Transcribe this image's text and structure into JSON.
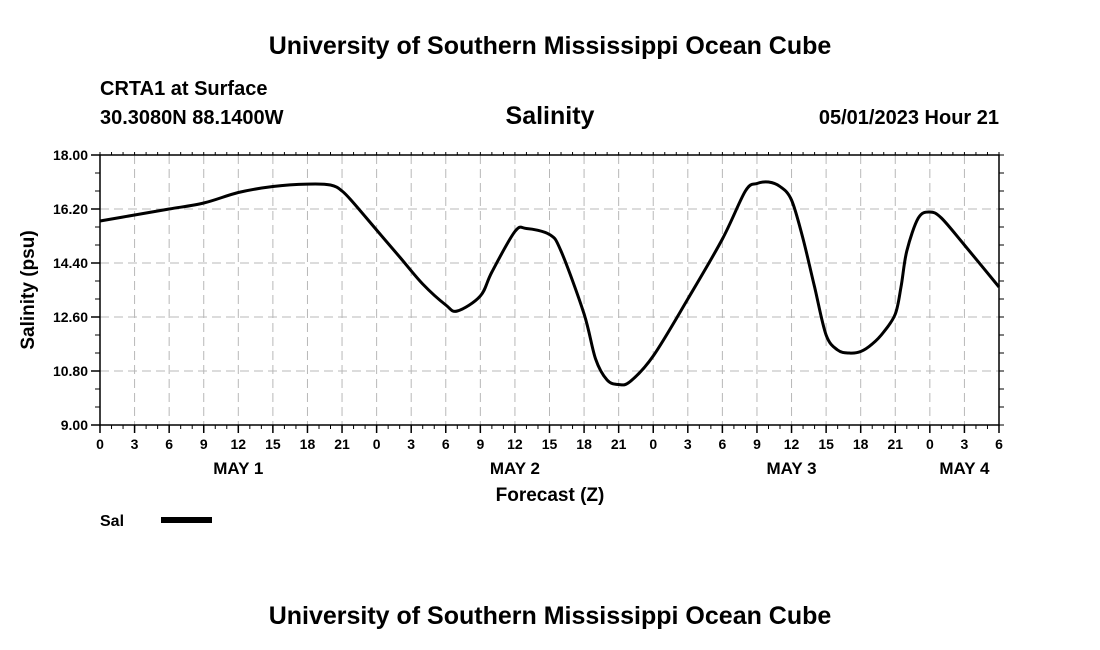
{
  "title_top": "University of Southern Mississippi Ocean Cube",
  "title_bottom": "University of Southern Mississippi Ocean Cube",
  "station": "CRTA1 at Surface",
  "coords": "30.3080N  88.1400W",
  "datetime": "05/01/2023 Hour 21",
  "chart_data": {
    "type": "line",
    "title": "Salinity",
    "xlabel": "Forecast (Z)",
    "ylabel": "Salinity (psu)",
    "xlim": [
      0,
      78
    ],
    "ylim": [
      9.0,
      18.0
    ],
    "y_ticks": [
      "18.00",
      "16.20",
      "14.40",
      "12.60",
      "10.80",
      "9.00"
    ],
    "y_tick_values": [
      18.0,
      16.2,
      14.4,
      12.6,
      10.8,
      9.0
    ],
    "x_ticks": [
      {
        "h": 0,
        "label": "0"
      },
      {
        "h": 3,
        "label": "3"
      },
      {
        "h": 6,
        "label": "6"
      },
      {
        "h": 9,
        "label": "9"
      },
      {
        "h": 12,
        "label": "12"
      },
      {
        "h": 15,
        "label": "15"
      },
      {
        "h": 18,
        "label": "18"
      },
      {
        "h": 21,
        "label": "21"
      },
      {
        "h": 24,
        "label": "0"
      },
      {
        "h": 27,
        "label": "3"
      },
      {
        "h": 30,
        "label": "6"
      },
      {
        "h": 33,
        "label": "9"
      },
      {
        "h": 36,
        "label": "12"
      },
      {
        "h": 39,
        "label": "15"
      },
      {
        "h": 42,
        "label": "18"
      },
      {
        "h": 45,
        "label": "21"
      },
      {
        "h": 48,
        "label": "0"
      },
      {
        "h": 51,
        "label": "3"
      },
      {
        "h": 54,
        "label": "6"
      },
      {
        "h": 57,
        "label": "9"
      },
      {
        "h": 60,
        "label": "12"
      },
      {
        "h": 63,
        "label": "15"
      },
      {
        "h": 66,
        "label": "18"
      },
      {
        "h": 69,
        "label": "21"
      },
      {
        "h": 72,
        "label": "0"
      },
      {
        "h": 75,
        "label": "3"
      },
      {
        "h": 78,
        "label": "6"
      }
    ],
    "day_labels": [
      {
        "h": 12,
        "label": "MAY 1"
      },
      {
        "h": 36,
        "label": "MAY 2"
      },
      {
        "h": 60,
        "label": "MAY 3"
      },
      {
        "h": 75,
        "label": "MAY 4"
      }
    ],
    "series": [
      {
        "name": "Sal",
        "x": [
          0,
          3,
          6,
          9,
          12,
          15,
          18,
          20,
          21,
          22,
          24,
          26,
          28,
          30,
          31,
          33,
          34,
          36,
          37,
          39,
          40,
          42,
          43,
          44,
          45,
          46,
          48,
          51,
          54,
          56,
          57,
          58,
          59,
          60,
          61,
          62,
          63,
          64,
          65,
          66,
          67,
          68,
          69,
          69.5,
          70,
          71,
          72,
          73,
          75,
          78
        ],
        "values": [
          15.8,
          16.0,
          16.2,
          16.4,
          16.75,
          16.95,
          17.03,
          17.0,
          16.8,
          16.4,
          15.5,
          14.6,
          13.7,
          13.0,
          12.8,
          13.3,
          14.1,
          15.45,
          15.55,
          15.35,
          14.8,
          12.7,
          11.2,
          10.5,
          10.35,
          10.45,
          11.3,
          13.2,
          15.2,
          16.8,
          17.05,
          17.1,
          16.95,
          16.5,
          15.2,
          13.6,
          12.0,
          11.5,
          11.4,
          11.45,
          11.7,
          12.1,
          12.7,
          13.6,
          14.8,
          15.9,
          16.1,
          15.9,
          15.0,
          13.6
        ]
      }
    ],
    "legend": [
      {
        "label": "Sal"
      }
    ]
  }
}
